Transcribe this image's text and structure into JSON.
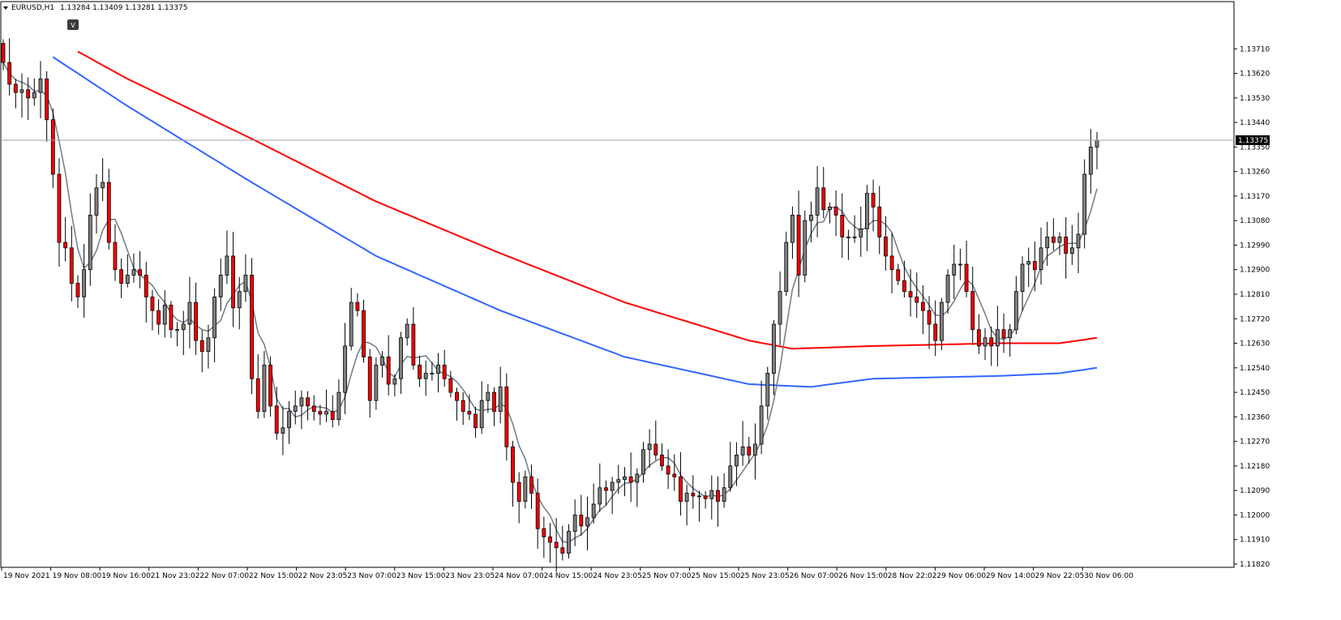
{
  "header": {
    "symbol": "EURUSD,H1",
    "ohlc": "1.13284 1.13409 1.13281 1.13375",
    "menu_icon": "triangle-down-icon"
  },
  "marker_label": "V",
  "colors": {
    "background": "#ffffff",
    "bull_body": "#808080",
    "bear_body": "#ff0000",
    "ma_slow": "#ff0000",
    "ma_medium": "#3366ff",
    "ma_fast": "#6e7b8b",
    "price_line": "#a0a0a0"
  },
  "chart_data": {
    "type": "candlestick",
    "ylim": [
      1.1182,
      1.138
    ],
    "y_ticks": [
      "1.13710",
      "1.13620",
      "1.13530",
      "1.13440",
      "1.13350",
      "1.13260",
      "1.13170",
      "1.13080",
      "1.12990",
      "1.12900",
      "1.12810",
      "1.12720",
      "1.12630",
      "1.12540",
      "1.12450",
      "1.12360",
      "1.12270",
      "1.12180",
      "1.12090",
      "1.12000",
      "1.11910",
      "1.11820"
    ],
    "x_ticks": [
      "19 Nov 2021",
      "19 Nov 08:00",
      "19 Nov 16:00",
      "21 Nov 23:02",
      "22 Nov 07:00",
      "22 Nov 15:00",
      "22 Nov 23:05",
      "23 Nov 07:00",
      "23 Nov 15:00",
      "23 Nov 23:05",
      "24 Nov 07:00",
      "24 Nov 15:00",
      "24 Nov 23:05",
      "25 Nov 07:00",
      "25 Nov 15:00",
      "25 Nov 23:05",
      "26 Nov 07:00",
      "26 Nov 15:00",
      "28 Nov 22:02",
      "29 Nov 06:00",
      "29 Nov 14:00",
      "29 Nov 22:05",
      "30 Nov 06:00"
    ],
    "current_price": 1.13375,
    "current_price_label": "1.13375",
    "closes": [
      1.1366,
      1.1358,
      1.1355,
      1.1356,
      1.1353,
      1.1355,
      1.136,
      1.1345,
      1.1325,
      1.13,
      1.1298,
      1.1285,
      1.128,
      1.129,
      1.131,
      1.132,
      1.1322,
      1.13,
      1.129,
      1.1285,
      1.1288,
      1.129,
      1.1288,
      1.128,
      1.1275,
      1.127,
      1.1277,
      1.1268,
      1.1268,
      1.127,
      1.1278,
      1.1264,
      1.126,
      1.1265,
      1.128,
      1.1288,
      1.1295,
      1.1276,
      1.1282,
      1.1288,
      1.125,
      1.1238,
      1.1255,
      1.124,
      1.123,
      1.1232,
      1.1238,
      1.124,
      1.1243,
      1.124,
      1.1238,
      1.1237,
      1.1238,
      1.1235,
      1.1245,
      1.1262,
      1.1278,
      1.1275,
      1.1258,
      1.1242,
      1.1255,
      1.1258,
      1.1248,
      1.125,
      1.1265,
      1.127,
      1.1255,
      1.125,
      1.1252,
      1.1252,
      1.1255,
      1.125,
      1.1245,
      1.1242,
      1.1238,
      1.1237,
      1.1232,
      1.1242,
      1.1245,
      1.1238,
      1.1247,
      1.1225,
      1.1212,
      1.1205,
      1.1214,
      1.1208,
      1.1195,
      1.1192,
      1.119,
      1.1188,
      1.1186,
      1.1194,
      1.12,
      1.1196,
      1.1199,
      1.1204,
      1.121,
      1.1209,
      1.1212,
      1.1213,
      1.1214,
      1.1212,
      1.1215,
      1.1224,
      1.1226,
      1.1222,
      1.1218,
      1.1215,
      1.1214,
      1.1205,
      1.1208,
      1.1207,
      1.1207,
      1.1206,
      1.1209,
      1.1205,
      1.121,
      1.1218,
      1.1222,
      1.1225,
      1.1222,
      1.1226,
      1.124,
      1.1252,
      1.127,
      1.1282,
      1.13,
      1.131,
      1.1288,
      1.1308,
      1.131,
      1.132,
      1.1312,
      1.1313,
      1.131,
      1.1302,
      1.1302,
      1.1302,
      1.1305,
      1.1318,
      1.1313,
      1.1302,
      1.1295,
      1.129,
      1.1286,
      1.1282,
      1.128,
      1.1278,
      1.1275,
      1.127,
      1.1264,
      1.1278,
      1.1288,
      1.1292,
      1.1292,
      1.1282,
      1.1268,
      1.1262,
      1.1265,
      1.1262,
      1.1268,
      1.1265,
      1.1268,
      1.1282,
      1.1292,
      1.1293,
      1.129,
      1.1298,
      1.1302,
      1.13,
      1.1302,
      1.1296,
      1.1298,
      1.1303,
      1.1325,
      1.1335,
      1.13375
    ]
  }
}
